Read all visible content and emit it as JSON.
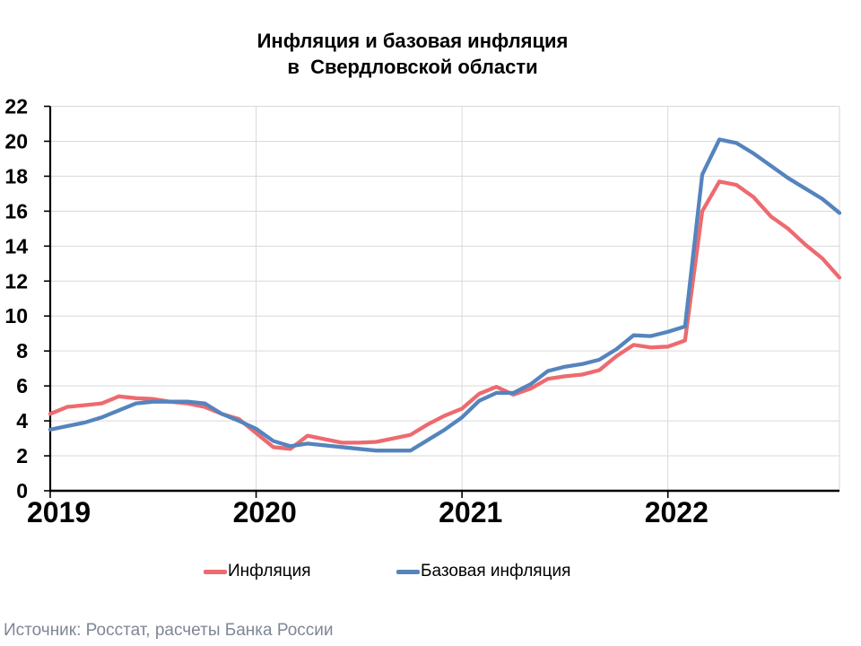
{
  "title": {
    "line1": "Инфляция и базовая инфляция",
    "line2": "в  Свердловской области"
  },
  "legend": [
    {
      "label": "Инфляция",
      "color": "#ED6A6F"
    },
    {
      "label": "Базовая инфляция",
      "color": "#5584BD"
    }
  ],
  "source": "Источник: Росстат, расчеты Банка России",
  "chart_data": {
    "type": "line",
    "title": "Инфляция и базовая инфляция в Свердловской области",
    "x": [
      "2019-01",
      "2019-02",
      "2019-03",
      "2019-04",
      "2019-05",
      "2019-06",
      "2019-07",
      "2019-08",
      "2019-09",
      "2019-10",
      "2019-11",
      "2019-12",
      "2020-01",
      "2020-02",
      "2020-03",
      "2020-04",
      "2020-05",
      "2020-06",
      "2020-07",
      "2020-08",
      "2020-09",
      "2020-10",
      "2020-11",
      "2020-12",
      "2021-01",
      "2021-02",
      "2021-03",
      "2021-04",
      "2021-05",
      "2021-06",
      "2021-07",
      "2021-08",
      "2021-09",
      "2021-10",
      "2021-11",
      "2021-12",
      "2022-01",
      "2022-02",
      "2022-03",
      "2022-04",
      "2022-05",
      "2022-06",
      "2022-07",
      "2022-08",
      "2022-09",
      "2022-10",
      "2022-11"
    ],
    "series": [
      {
        "name": "Инфляция",
        "color": "#ED6A6F",
        "values": [
          4.4,
          4.8,
          4.9,
          5.0,
          5.4,
          5.3,
          5.25,
          5.1,
          5.0,
          4.8,
          4.4,
          4.1,
          3.3,
          2.5,
          2.4,
          3.15,
          2.95,
          2.75,
          2.75,
          2.8,
          3.0,
          3.2,
          3.8,
          4.3,
          4.7,
          5.55,
          5.95,
          5.5,
          5.85,
          6.4,
          6.55,
          6.65,
          6.9,
          7.7,
          8.35,
          8.2,
          8.25,
          8.6,
          16.0,
          17.7,
          17.5,
          16.8,
          15.7,
          15.0,
          14.1,
          13.3,
          12.2
        ]
      },
      {
        "name": "Базовая инфляция",
        "color": "#5584BD",
        "values": [
          3.5,
          3.7,
          3.9,
          4.2,
          4.6,
          5.0,
          5.1,
          5.1,
          5.1,
          5.0,
          4.4,
          4.0,
          3.55,
          2.85,
          2.55,
          2.7,
          2.6,
          2.5,
          2.4,
          2.3,
          2.3,
          2.3,
          2.9,
          3.5,
          4.2,
          5.15,
          5.6,
          5.6,
          6.1,
          6.85,
          7.1,
          7.25,
          7.5,
          8.1,
          8.9,
          8.85,
          9.1,
          9.4,
          18.1,
          20.1,
          19.9,
          19.3,
          18.6,
          17.9,
          17.3,
          16.7,
          15.9
        ]
      }
    ],
    "ylim": [
      0,
      22
    ],
    "y_tick_step": 2,
    "y_tick_labels": [
      "0",
      "2",
      "4",
      "6",
      "8",
      "10",
      "12",
      "14",
      "16",
      "18",
      "20",
      "22"
    ],
    "x_tick_labels": [
      "2019",
      "2020",
      "2021",
      "2022"
    ],
    "x_tick_indices": [
      0,
      12,
      24,
      36
    ],
    "grid": {
      "horizontal": true,
      "vertical_at_years": true,
      "color": "#D9D9D9"
    },
    "axis_color": "#000000",
    "legend_position": "bottom"
  }
}
